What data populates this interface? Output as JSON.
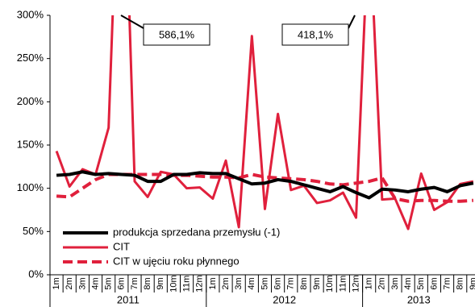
{
  "chart_data": {
    "type": "line",
    "categories": [
      "1m",
      "2m",
      "3m",
      "4m",
      "5m",
      "6m",
      "7m",
      "8m",
      "9m",
      "10m",
      "11m",
      "12m",
      "1m",
      "2m",
      "3m",
      "4m",
      "5m",
      "6m",
      "7m",
      "8m",
      "9m",
      "10m",
      "11m",
      "12m",
      "1m",
      "2m",
      "3m",
      "4m",
      "5m",
      "6m",
      "7m",
      "8m",
      "9m"
    ],
    "groups": [
      "2011",
      "2012",
      "2013"
    ],
    "series": [
      {
        "name": "produkcja sprzedana przemysłu (-1)",
        "color": "#000000",
        "style": "solid",
        "width": 4,
        "values": [
          115,
          116,
          119,
          116,
          117,
          116,
          115,
          108,
          108,
          116,
          116,
          118,
          117,
          117,
          111,
          105,
          106,
          110,
          108,
          104,
          100,
          96,
          102,
          95,
          89,
          99,
          98,
          96,
          99,
          101,
          96,
          103,
          106
        ]
      },
      {
        "name": "CIT",
        "color": "#e0203c",
        "style": "solid",
        "width": 3,
        "values": [
          143,
          102,
          122,
          116,
          170,
          586.1,
          108,
          90,
          119,
          116,
          100,
          101,
          88,
          132,
          55,
          276,
          76,
          186,
          98,
          103,
          83,
          86,
          95,
          66,
          418.1,
          87,
          88,
          53,
          117,
          75,
          84,
          105,
          108
        ]
      },
      {
        "name": "CIT w ujęciu roku płynnego",
        "color": "#e0203c",
        "style": "dashed",
        "width": 4,
        "values": [
          91,
          90,
          100,
          110,
          116,
          116,
          116,
          116,
          116,
          115,
          115,
          114,
          113,
          113,
          112,
          116,
          113,
          112,
          111,
          110,
          108,
          105,
          104,
          106,
          108,
          112,
          88,
          85,
          86,
          86,
          85,
          85,
          86
        ]
      }
    ],
    "annotations": [
      {
        "text": "586,1%"
      },
      {
        "text": "418,1%"
      }
    ],
    "ylim": [
      0,
      300
    ],
    "yticks": [
      {
        "value": 0,
        "label": "0%"
      },
      {
        "value": 50,
        "label": "50%"
      },
      {
        "value": 100,
        "label": "100%"
      },
      {
        "value": 150,
        "label": "150%"
      },
      {
        "value": 200,
        "label": "200%"
      },
      {
        "value": 250,
        "label": "250%"
      },
      {
        "value": 300,
        "label": "300%"
      }
    ],
    "legend": "lower left"
  }
}
